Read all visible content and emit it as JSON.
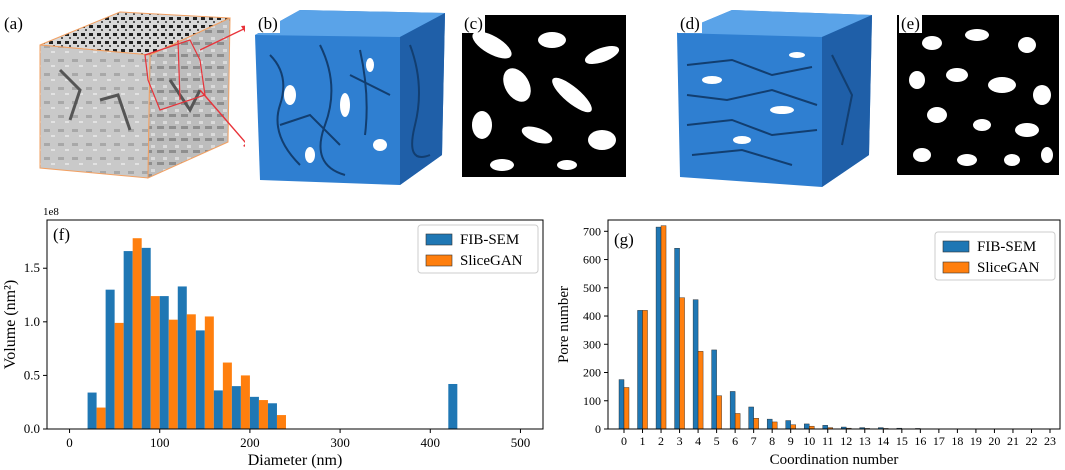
{
  "panel_labels": {
    "a": "(a)",
    "b": "(b)",
    "c": "(c)",
    "d": "(d)",
    "e": "(e)"
  },
  "chart_data": [
    {
      "type": "bar",
      "panel_label": "(f)",
      "offset_label": "1e8",
      "xlabel": "Diameter (nm)",
      "ylabel": "Volume (nm²)",
      "xlim": [
        -25,
        525
      ],
      "ylim": [
        0,
        1.95
      ],
      "xticks": [
        0,
        100,
        200,
        300,
        400,
        500
      ],
      "yticks": [
        0.0,
        0.5,
        1.0,
        1.5
      ],
      "ytick_labels": [
        "0.0",
        "0.5",
        "1.0",
        "1.5"
      ],
      "legend_position": "top-right",
      "x": [
        10,
        30,
        50,
        70,
        90,
        110,
        130,
        150,
        170,
        190,
        210,
        230,
        250,
        270,
        290,
        310,
        330,
        350,
        370,
        390,
        410,
        430,
        450,
        470,
        490
      ],
      "series": [
        {
          "name": "FIB-SEM",
          "color": "#1f77b4",
          "values": [
            0.0,
            0.34,
            1.3,
            1.66,
            1.69,
            1.24,
            1.33,
            0.92,
            0.36,
            0.4,
            0.3,
            0.24,
            0.0,
            0.0,
            0.0,
            0.0,
            0.0,
            0.0,
            0.0,
            0.0,
            0.0,
            0.42,
            0.0,
            0.0,
            0.0
          ]
        },
        {
          "name": "SliceGAN",
          "color": "#ff7f0e",
          "values": [
            0.0,
            0.2,
            0.99,
            1.78,
            1.24,
            1.02,
            1.07,
            1.05,
            0.62,
            0.5,
            0.27,
            0.13,
            0.0,
            0.0,
            0.0,
            0.0,
            0.0,
            0.0,
            0.0,
            0.0,
            0.0,
            0.0,
            0.0,
            0.0,
            0.0
          ]
        }
      ]
    },
    {
      "type": "bar",
      "panel_label": "(g)",
      "xlabel": "Coordination number",
      "ylabel": "Pore number",
      "ylim": [
        0,
        740
      ],
      "yticks": [
        0,
        100,
        200,
        300,
        400,
        500,
        600,
        700
      ],
      "legend_position": "top-right",
      "categories": [
        "0",
        "1",
        "2",
        "3",
        "4",
        "5",
        "6",
        "7",
        "8",
        "9",
        "10",
        "11",
        "12",
        "13",
        "14",
        "15",
        "16",
        "17",
        "18",
        "19",
        "20",
        "21",
        "22",
        "23"
      ],
      "series": [
        {
          "name": "FIB-SEM",
          "color": "#1f77b4",
          "values": [
            175,
            420,
            715,
            640,
            458,
            280,
            133,
            78,
            35,
            30,
            18,
            13,
            7,
            5,
            5,
            3,
            2,
            1,
            1,
            1,
            1,
            0,
            0,
            0
          ]
        },
        {
          "name": "SliceGAN",
          "color": "#ff7f0e",
          "values": [
            147,
            420,
            720,
            465,
            275,
            118,
            55,
            38,
            25,
            15,
            10,
            5,
            3,
            2,
            2,
            1,
            1,
            0,
            0,
            0,
            0,
            0,
            0,
            0
          ]
        }
      ]
    }
  ]
}
